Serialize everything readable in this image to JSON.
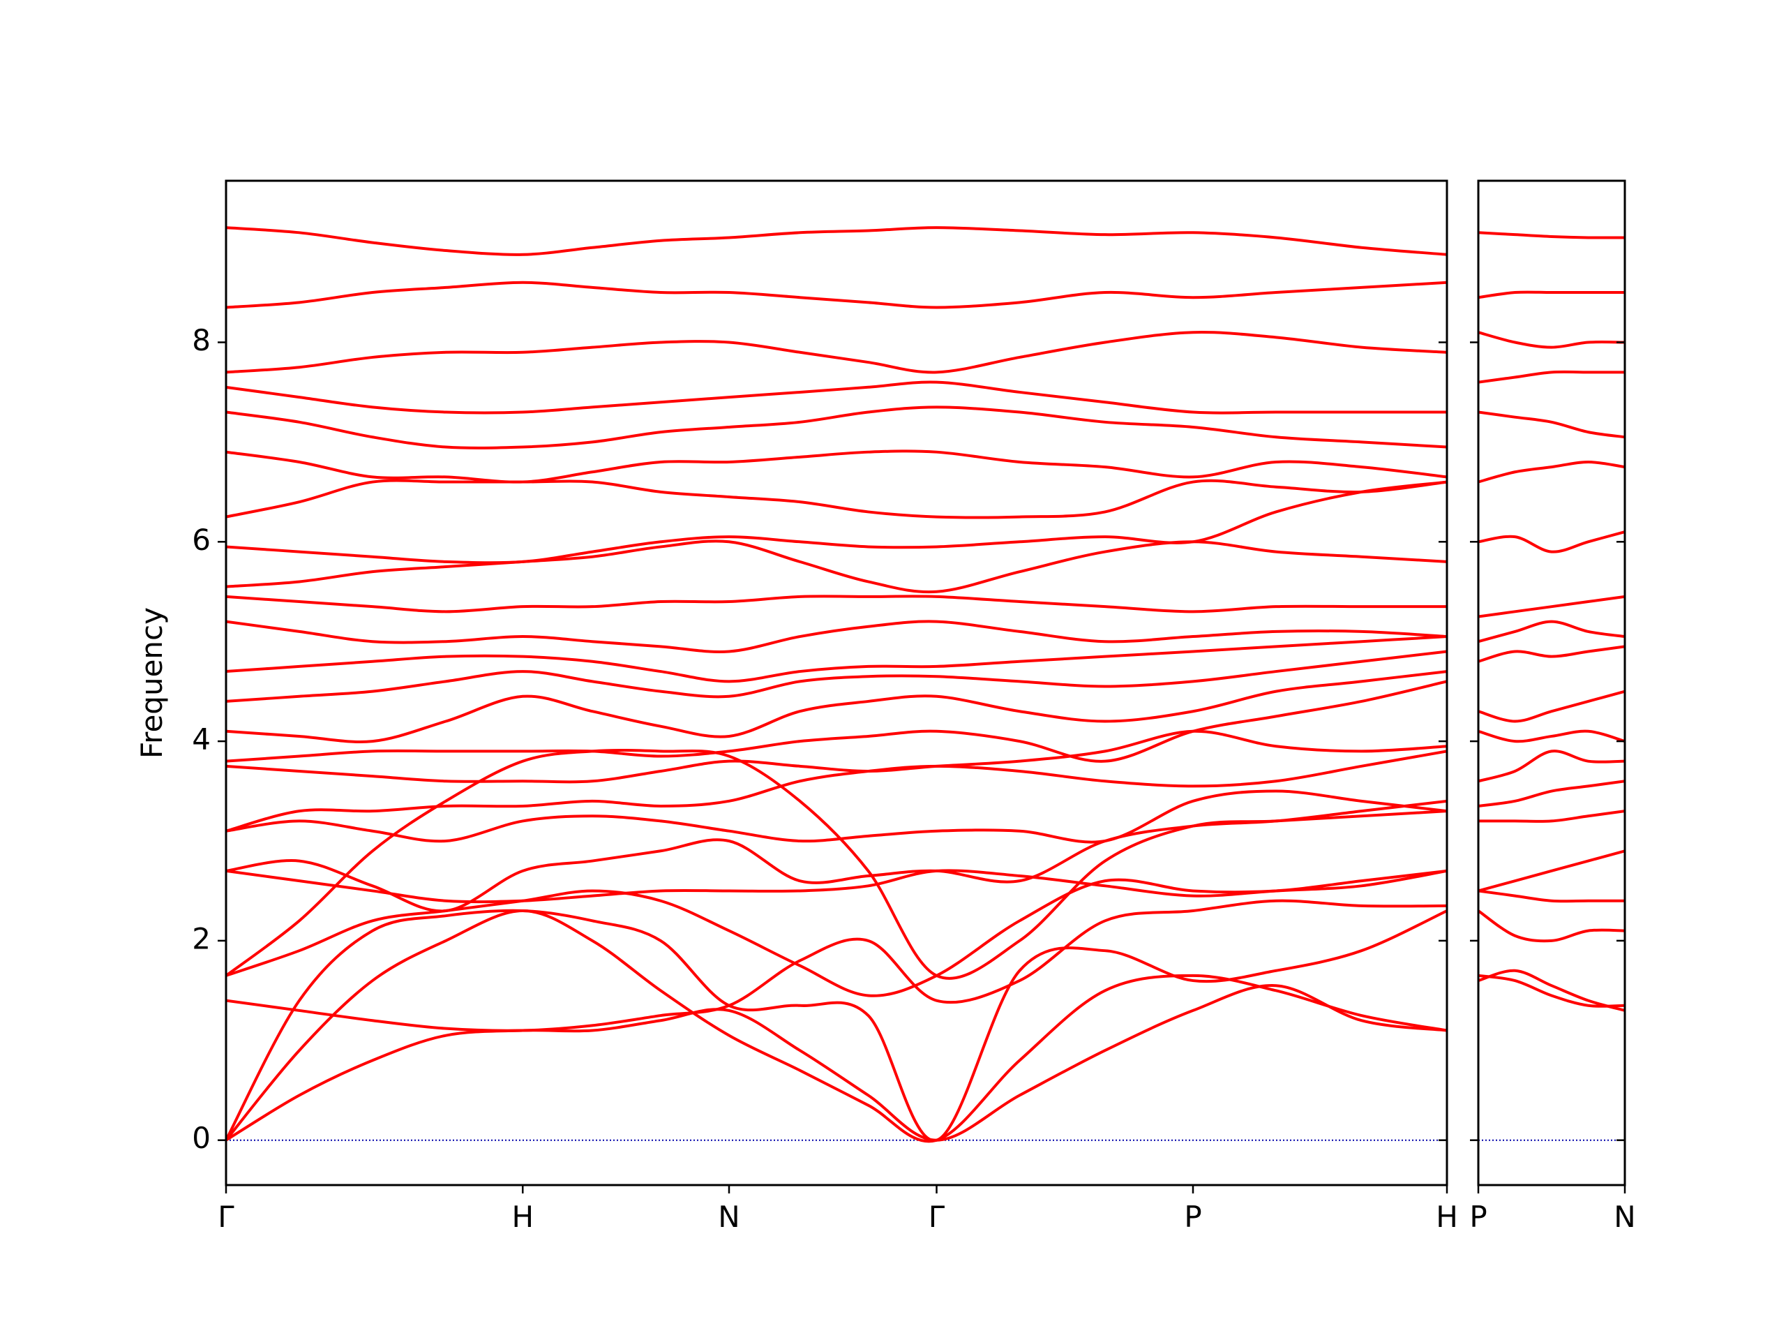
{
  "chart_data": [
    {
      "type": "line",
      "ylabel": "Frequency",
      "color": "#ff0000",
      "ylim": [
        -0.45,
        9.62
      ],
      "yticks": [
        0,
        2,
        4,
        6,
        8
      ],
      "ytick_labels": true,
      "xlim": [
        0,
        1.0
      ],
      "xticks": [
        {
          "value": 0,
          "label": "Γ"
        },
        {
          "value": 0.243,
          "label": "H"
        },
        {
          "value": 0.412,
          "label": "N"
        },
        {
          "value": 0.582,
          "label": "Γ"
        },
        {
          "value": 0.792,
          "label": "P"
        },
        {
          "value": 1.0,
          "label": "H"
        }
      ],
      "hline": 0,
      "hline_color": "#0000aa",
      "x": [
        0,
        0.06,
        0.12,
        0.18,
        0.243,
        0.3,
        0.356,
        0.412,
        0.47,
        0.526,
        0.582,
        0.65,
        0.72,
        0.792,
        0.86,
        0.93,
        1.0
      ],
      "series": [
        {
          "values": [
            0,
            0.45,
            0.8,
            1.05,
            1.1,
            1.1,
            1.2,
            1.3,
            0.9,
            0.45,
            0,
            0.45,
            0.9,
            1.3,
            1.55,
            1.2,
            1.1
          ]
        },
        {
          "values": [
            0,
            0.9,
            1.6,
            2.0,
            2.3,
            2.0,
            1.5,
            1.05,
            0.7,
            0.35,
            0,
            0.8,
            1.5,
            1.65,
            1.5,
            1.25,
            1.1
          ]
        },
        {
          "values": [
            0,
            1.4,
            2.1,
            2.25,
            2.3,
            2.2,
            2.0,
            1.35,
            1.35,
            1.25,
            0,
            1.7,
            1.9,
            1.6,
            1.7,
            1.9,
            2.3
          ]
        },
        {
          "values": [
            1.4,
            1.3,
            1.2,
            1.12,
            1.1,
            1.15,
            1.25,
            1.35,
            1.8,
            2.0,
            1.4,
            1.6,
            2.2,
            2.3,
            2.4,
            2.35,
            2.35
          ]
        },
        {
          "values": [
            1.65,
            1.9,
            2.2,
            2.3,
            2.4,
            2.5,
            2.4,
            2.1,
            1.75,
            1.45,
            1.65,
            2.2,
            2.6,
            2.5,
            2.5,
            2.6,
            2.7
          ]
        },
        {
          "values": [
            1.65,
            2.2,
            2.9,
            3.4,
            3.8,
            3.9,
            3.9,
            3.85,
            3.4,
            2.7,
            1.65,
            2.0,
            2.8,
            3.15,
            3.2,
            3.25,
            3.3
          ]
        },
        {
          "values": [
            2.7,
            2.6,
            2.5,
            2.4,
            2.4,
            2.45,
            2.5,
            2.5,
            2.5,
            2.55,
            2.7,
            2.65,
            2.55,
            2.45,
            2.5,
            2.55,
            2.7
          ]
        },
        {
          "values": [
            2.7,
            2.8,
            2.55,
            2.3,
            2.7,
            2.8,
            2.9,
            3.0,
            2.6,
            2.65,
            2.7,
            2.6,
            3.0,
            3.15,
            3.2,
            3.3,
            3.4
          ]
        },
        {
          "values": [
            3.1,
            3.2,
            3.1,
            3.0,
            3.2,
            3.25,
            3.2,
            3.1,
            3.0,
            3.05,
            3.1,
            3.1,
            3.0,
            3.4,
            3.5,
            3.4,
            3.3
          ]
        },
        {
          "values": [
            3.1,
            3.3,
            3.3,
            3.35,
            3.35,
            3.4,
            3.35,
            3.4,
            3.6,
            3.7,
            3.75,
            3.7,
            3.6,
            3.55,
            3.6,
            3.75,
            3.9
          ]
        },
        {
          "values": [
            3.75,
            3.7,
            3.65,
            3.6,
            3.6,
            3.6,
            3.7,
            3.8,
            3.75,
            3.7,
            3.75,
            3.8,
            3.9,
            4.1,
            3.95,
            3.9,
            3.95
          ]
        },
        {
          "values": [
            3.8,
            3.85,
            3.9,
            3.9,
            3.9,
            3.9,
            3.85,
            3.9,
            4.0,
            4.05,
            4.1,
            4.0,
            3.8,
            4.1,
            4.25,
            4.4,
            4.6
          ]
        },
        {
          "values": [
            4.1,
            4.05,
            4.0,
            4.2,
            4.45,
            4.3,
            4.15,
            4.05,
            4.3,
            4.4,
            4.45,
            4.3,
            4.2,
            4.3,
            4.5,
            4.6,
            4.7
          ]
        },
        {
          "values": [
            4.4,
            4.45,
            4.5,
            4.6,
            4.7,
            4.6,
            4.5,
            4.45,
            4.6,
            4.65,
            4.65,
            4.6,
            4.55,
            4.6,
            4.7,
            4.8,
            4.9
          ]
        },
        {
          "values": [
            4.7,
            4.75,
            4.8,
            4.85,
            4.85,
            4.8,
            4.7,
            4.6,
            4.7,
            4.75,
            4.75,
            4.8,
            4.85,
            4.9,
            4.95,
            5.0,
            5.05
          ]
        },
        {
          "values": [
            5.2,
            5.1,
            5.0,
            5.0,
            5.05,
            5.0,
            4.95,
            4.9,
            5.05,
            5.15,
            5.2,
            5.1,
            5.0,
            5.05,
            5.1,
            5.1,
            5.05
          ]
        },
        {
          "values": [
            5.45,
            5.4,
            5.35,
            5.3,
            5.35,
            5.35,
            5.4,
            5.4,
            5.45,
            5.45,
            5.45,
            5.4,
            5.35,
            5.3,
            5.35,
            5.35,
            5.35
          ]
        },
        {
          "values": [
            5.55,
            5.6,
            5.7,
            5.75,
            5.8,
            5.85,
            5.95,
            6.0,
            5.8,
            5.6,
            5.5,
            5.7,
            5.9,
            6.0,
            5.9,
            5.85,
            5.8
          ]
        },
        {
          "values": [
            5.95,
            5.9,
            5.85,
            5.8,
            5.8,
            5.9,
            6.0,
            6.05,
            6.0,
            5.95,
            5.95,
            6.0,
            6.05,
            6.0,
            6.3,
            6.5,
            6.6
          ]
        },
        {
          "values": [
            6.25,
            6.4,
            6.6,
            6.6,
            6.6,
            6.6,
            6.5,
            6.45,
            6.4,
            6.3,
            6.25,
            6.25,
            6.3,
            6.6,
            6.55,
            6.5,
            6.6
          ]
        },
        {
          "values": [
            6.9,
            6.8,
            6.65,
            6.65,
            6.6,
            6.7,
            6.8,
            6.8,
            6.85,
            6.9,
            6.9,
            6.8,
            6.75,
            6.65,
            6.8,
            6.75,
            6.65
          ]
        },
        {
          "values": [
            7.3,
            7.2,
            7.05,
            6.95,
            6.95,
            7.0,
            7.1,
            7.15,
            7.2,
            7.3,
            7.35,
            7.3,
            7.2,
            7.15,
            7.05,
            7.0,
            6.95
          ]
        },
        {
          "values": [
            7.55,
            7.45,
            7.35,
            7.3,
            7.3,
            7.35,
            7.4,
            7.45,
            7.5,
            7.55,
            7.6,
            7.5,
            7.4,
            7.3,
            7.3,
            7.3,
            7.3
          ]
        },
        {
          "values": [
            7.7,
            7.75,
            7.85,
            7.9,
            7.9,
            7.95,
            8.0,
            8.0,
            7.9,
            7.8,
            7.7,
            7.85,
            8.0,
            8.1,
            8.05,
            7.95,
            7.9
          ]
        },
        {
          "values": [
            8.35,
            8.4,
            8.5,
            8.55,
            8.6,
            8.55,
            8.5,
            8.5,
            8.45,
            8.4,
            8.35,
            8.4,
            8.5,
            8.45,
            8.5,
            8.55,
            8.6
          ]
        },
        {
          "values": [
            9.15,
            9.1,
            9.0,
            8.92,
            8.88,
            8.95,
            9.02,
            9.05,
            9.1,
            9.12,
            9.15,
            9.12,
            9.08,
            9.1,
            9.05,
            8.95,
            8.88
          ]
        }
      ]
    },
    {
      "type": "line",
      "color": "#ff0000",
      "ylim": [
        -0.45,
        9.62
      ],
      "yticks": [
        0,
        2,
        4,
        6,
        8
      ],
      "ytick_labels": false,
      "xlim": [
        0,
        1.0
      ],
      "xticks": [
        {
          "value": 0,
          "label": "P"
        },
        {
          "value": 1.0,
          "label": "N"
        }
      ],
      "hline": 0,
      "hline_color": "#0000aa",
      "x": [
        0,
        0.25,
        0.5,
        0.75,
        1.0
      ],
      "series": [
        {
          "values": [
            1.6,
            1.7,
            1.55,
            1.4,
            1.3
          ]
        },
        {
          "values": [
            1.65,
            1.6,
            1.45,
            1.35,
            1.35
          ]
        },
        {
          "values": [
            2.3,
            2.05,
            2.0,
            2.1,
            2.1
          ]
        },
        {
          "values": [
            2.5,
            2.45,
            2.4,
            2.4,
            2.4
          ]
        },
        {
          "values": [
            2.5,
            2.6,
            2.7,
            2.8,
            2.9
          ]
        },
        {
          "values": [
            3.2,
            3.2,
            3.2,
            3.25,
            3.3
          ]
        },
        {
          "values": [
            3.35,
            3.4,
            3.5,
            3.55,
            3.6
          ]
        },
        {
          "values": [
            3.6,
            3.7,
            3.9,
            3.8,
            3.8
          ]
        },
        {
          "values": [
            4.1,
            4.0,
            4.05,
            4.1,
            4.0
          ]
        },
        {
          "values": [
            4.3,
            4.2,
            4.3,
            4.4,
            4.5
          ]
        },
        {
          "values": [
            4.8,
            4.9,
            4.85,
            4.9,
            4.95
          ]
        },
        {
          "values": [
            5.0,
            5.1,
            5.2,
            5.1,
            5.05
          ]
        },
        {
          "values": [
            5.25,
            5.3,
            5.35,
            5.4,
            5.45
          ]
        },
        {
          "values": [
            6.0,
            6.05,
            5.9,
            6.0,
            6.1
          ]
        },
        {
          "values": [
            6.6,
            6.7,
            6.75,
            6.8,
            6.75
          ]
        },
        {
          "values": [
            7.3,
            7.25,
            7.2,
            7.1,
            7.05
          ]
        },
        {
          "values": [
            7.6,
            7.65,
            7.7,
            7.7,
            7.7
          ]
        },
        {
          "values": [
            8.1,
            8.0,
            7.95,
            8.0,
            8.0
          ]
        },
        {
          "values": [
            8.45,
            8.5,
            8.5,
            8.5,
            8.5
          ]
        },
        {
          "values": [
            9.1,
            9.08,
            9.06,
            9.05,
            9.05
          ]
        }
      ]
    }
  ]
}
